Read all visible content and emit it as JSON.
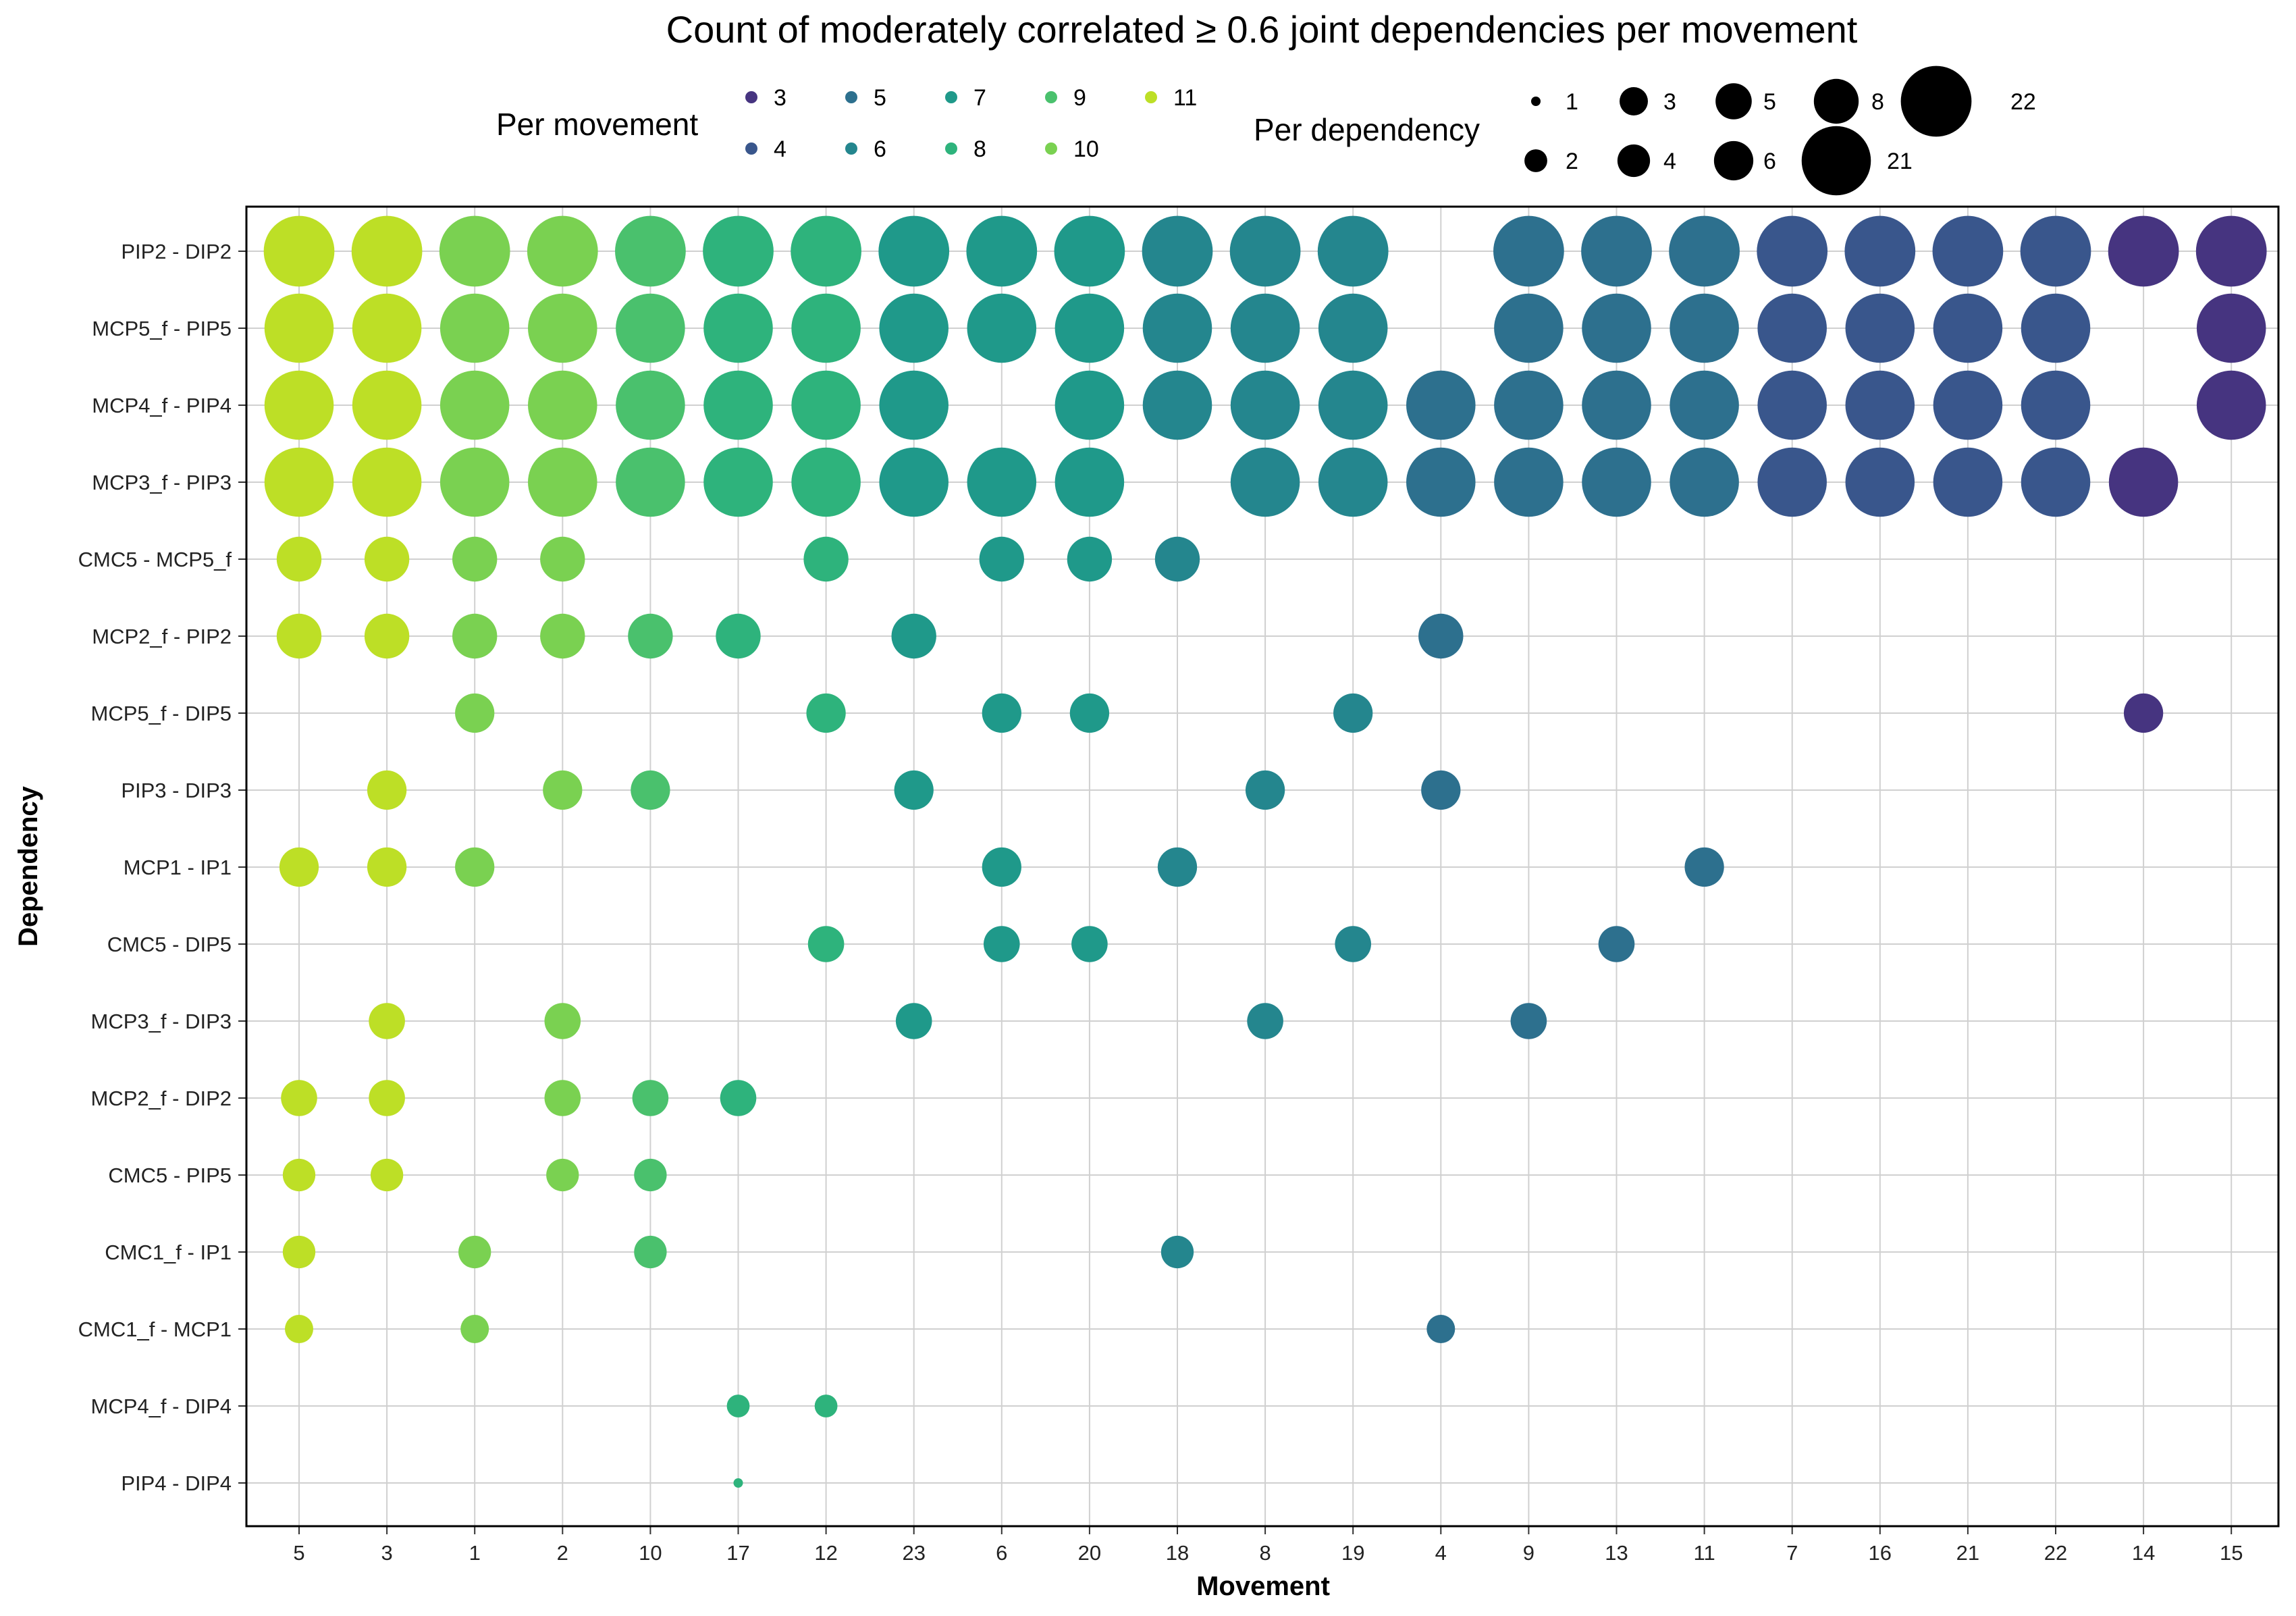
{
  "chart_data": {
    "type": "scatter",
    "title": "Count of moderately correlated ≥ 0.6 joint dependencies per movement",
    "xlabel": "Movement",
    "ylabel": "Dependency",
    "x_categories": [
      "5",
      "3",
      "1",
      "2",
      "10",
      "17",
      "12",
      "23",
      "6",
      "20",
      "18",
      "8",
      "19",
      "4",
      "9",
      "13",
      "11",
      "7",
      "16",
      "21",
      "22",
      "14",
      "15"
    ],
    "y_categories": [
      "PIP2 - DIP2",
      "MCP5_f - PIP5",
      "MCP4_f - PIP4",
      "MCP3_f - PIP3",
      "CMC5 - MCP5_f",
      "MCP2_f - PIP2",
      "MCP5_f - DIP5",
      "PIP3 - DIP3",
      "MCP1 - IP1",
      "CMC5 - DIP5",
      "MCP3_f - DIP3",
      "MCP2_f - DIP2",
      "CMC5 - PIP5",
      "CMC1_f - IP1",
      "CMC1_f - MCP1",
      "MCP4_f - DIP4",
      "PIP4 - DIP4"
    ],
    "dependency_counts": {
      "PIP2 - DIP2": 22,
      "MCP5_f - PIP5": 21,
      "MCP4_f - PIP4": 21,
      "MCP3_f - PIP3": 21,
      "CMC5 - MCP5_f": 8,
      "MCP2_f - PIP2": 8,
      "MCP5_f - DIP5": 6,
      "PIP3 - DIP3": 6,
      "MCP1 - IP1": 6,
      "CMC5 - DIP5": 5,
      "MCP3_f - DIP3": 5,
      "MCP2_f - DIP2": 5,
      "CMC5 - PIP5": 4,
      "CMC1_f - IP1": 4,
      "CMC1_f - MCP1": 3,
      "MCP4_f - DIP4": 2,
      "PIP4 - DIP4": 1
    },
    "movement_counts": {
      "5": 11,
      "3": 11,
      "1": 10,
      "2": 10,
      "10": 9,
      "17": 8,
      "12": 8,
      "23": 7,
      "6": 7,
      "20": 7,
      "18": 6,
      "8": 6,
      "19": 6,
      "4": 5,
      "9": 5,
      "13": 5,
      "11": 5,
      "7": 4,
      "16": 4,
      "21": 4,
      "22": 4,
      "14": 3,
      "15": 3
    },
    "points": {
      "PIP2 - DIP2": [
        "5",
        "3",
        "1",
        "2",
        "10",
        "17",
        "12",
        "23",
        "6",
        "20",
        "18",
        "8",
        "19",
        "9",
        "13",
        "11",
        "7",
        "16",
        "21",
        "22",
        "14",
        "15"
      ],
      "MCP5_f - PIP5": [
        "5",
        "3",
        "1",
        "2",
        "10",
        "17",
        "12",
        "23",
        "6",
        "20",
        "18",
        "8",
        "19",
        "9",
        "13",
        "11",
        "7",
        "16",
        "21",
        "22",
        "15"
      ],
      "MCP4_f - PIP4": [
        "5",
        "3",
        "1",
        "2",
        "10",
        "17",
        "12",
        "23",
        "20",
        "18",
        "8",
        "19",
        "4",
        "9",
        "13",
        "11",
        "7",
        "16",
        "21",
        "22",
        "15"
      ],
      "MCP3_f - PIP3": [
        "5",
        "3",
        "1",
        "2",
        "10",
        "17",
        "12",
        "23",
        "6",
        "20",
        "8",
        "19",
        "4",
        "9",
        "13",
        "11",
        "7",
        "16",
        "21",
        "22",
        "14"
      ],
      "CMC5 - MCP5_f": [
        "5",
        "3",
        "1",
        "2",
        "12",
        "6",
        "20",
        "18"
      ],
      "MCP2_f - PIP2": [
        "5",
        "3",
        "1",
        "2",
        "10",
        "17",
        "23",
        "4"
      ],
      "MCP5_f - DIP5": [
        "1",
        "12",
        "6",
        "20",
        "19",
        "14"
      ],
      "PIP3 - DIP3": [
        "3",
        "2",
        "10",
        "23",
        "8",
        "4"
      ],
      "MCP1 - IP1": [
        "5",
        "3",
        "1",
        "6",
        "18",
        "11"
      ],
      "CMC5 - DIP5": [
        "12",
        "6",
        "20",
        "19",
        "13"
      ],
      "MCP3_f - DIP3": [
        "3",
        "2",
        "23",
        "8",
        "9"
      ],
      "MCP2_f - DIP2": [
        "5",
        "3",
        "2",
        "10",
        "17"
      ],
      "CMC5 - PIP5": [
        "5",
        "3",
        "2",
        "10"
      ],
      "CMC1_f - IP1": [
        "5",
        "1",
        "10",
        "18"
      ],
      "CMC1_f - MCP1": [
        "5",
        "1",
        "4"
      ],
      "MCP4_f - DIP4": [
        "17",
        "12"
      ],
      "PIP4 - DIP4": [
        "17"
      ]
    },
    "color_legend": {
      "title": "Per movement",
      "entries": [
        {
          "label": "3",
          "color": "#463480"
        },
        {
          "label": "4",
          "color": "#39568c"
        },
        {
          "label": "5",
          "color": "#2d708e"
        },
        {
          "label": "6",
          "color": "#24868e"
        },
        {
          "label": "7",
          "color": "#1f998a"
        },
        {
          "label": "8",
          "color": "#2eb37c"
        },
        {
          "label": "9",
          "color": "#4ac16d"
        },
        {
          "label": "10",
          "color": "#7ad151"
        },
        {
          "label": "11",
          "color": "#bddf26"
        }
      ]
    },
    "size_legend": {
      "title": "Per dependency",
      "entries": [
        "1",
        "2",
        "3",
        "4",
        "5",
        "6",
        "8",
        "21",
        "22"
      ]
    },
    "grid": true,
    "legend_position": "top"
  }
}
